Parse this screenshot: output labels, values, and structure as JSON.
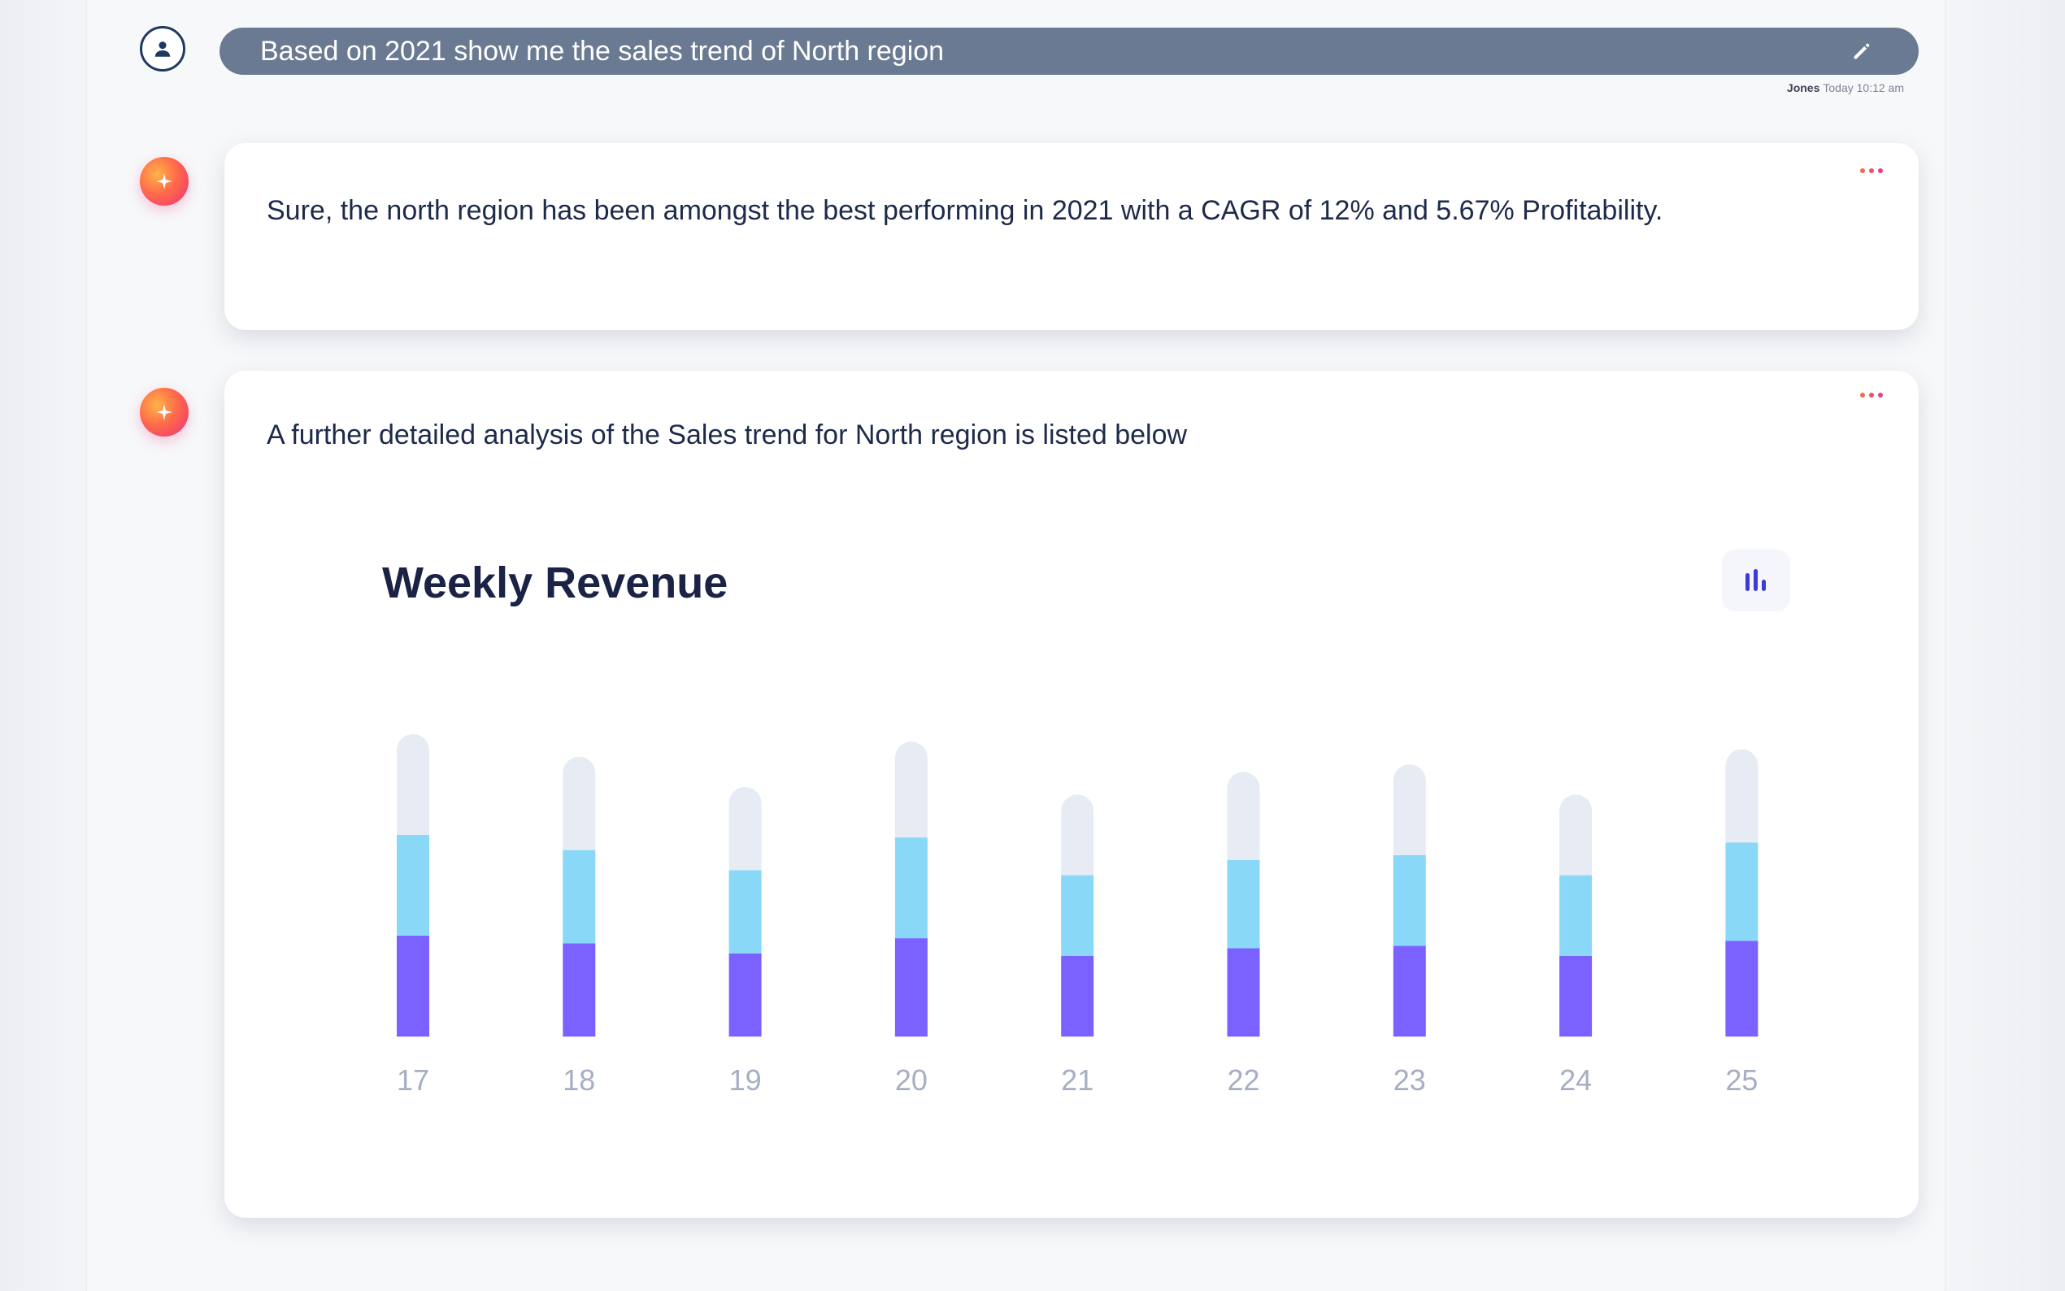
{
  "user_message": {
    "text": "Based on 2021 show me the sales trend of North region",
    "author": "Jones",
    "time": "Today 10:12 am"
  },
  "ai_messages": [
    {
      "text": "Sure, the north region has been amongst the best performing in 2021 with a CAGR of 12% and 5.67% Profitability."
    },
    {
      "text": "A further detailed analysis of the Sales trend for North region is listed below"
    }
  ],
  "colors": {
    "segment_bottom": "#7b61ff",
    "segment_middle": "#8ad8f7",
    "segment_top": "#e6ebf4",
    "prompt_bar": "#6b7a93",
    "ai_accent": "#ec2d7a"
  },
  "icons": {
    "user": "user-icon",
    "edit": "pencil-icon",
    "ai": "sparkle-icon",
    "more": "more-dots-icon",
    "chart_toggle": "bar-chart-icon"
  },
  "chart_data": {
    "type": "bar",
    "stacked": true,
    "title": "Weekly Revenue",
    "categories": [
      "17",
      "18",
      "19",
      "20",
      "21",
      "22",
      "23",
      "24",
      "25"
    ],
    "series": [
      {
        "values": [
          40,
          37,
          33,
          39,
          32,
          35,
          36,
          32,
          38
        ]
      },
      {
        "values": [
          40,
          37,
          33,
          40,
          32,
          35,
          36,
          32,
          39
        ]
      },
      {
        "values": [
          40,
          37,
          33,
          38,
          32,
          35,
          36,
          32,
          37
        ]
      }
    ],
    "ylim": [
      0,
      120
    ],
    "grid": false
  }
}
